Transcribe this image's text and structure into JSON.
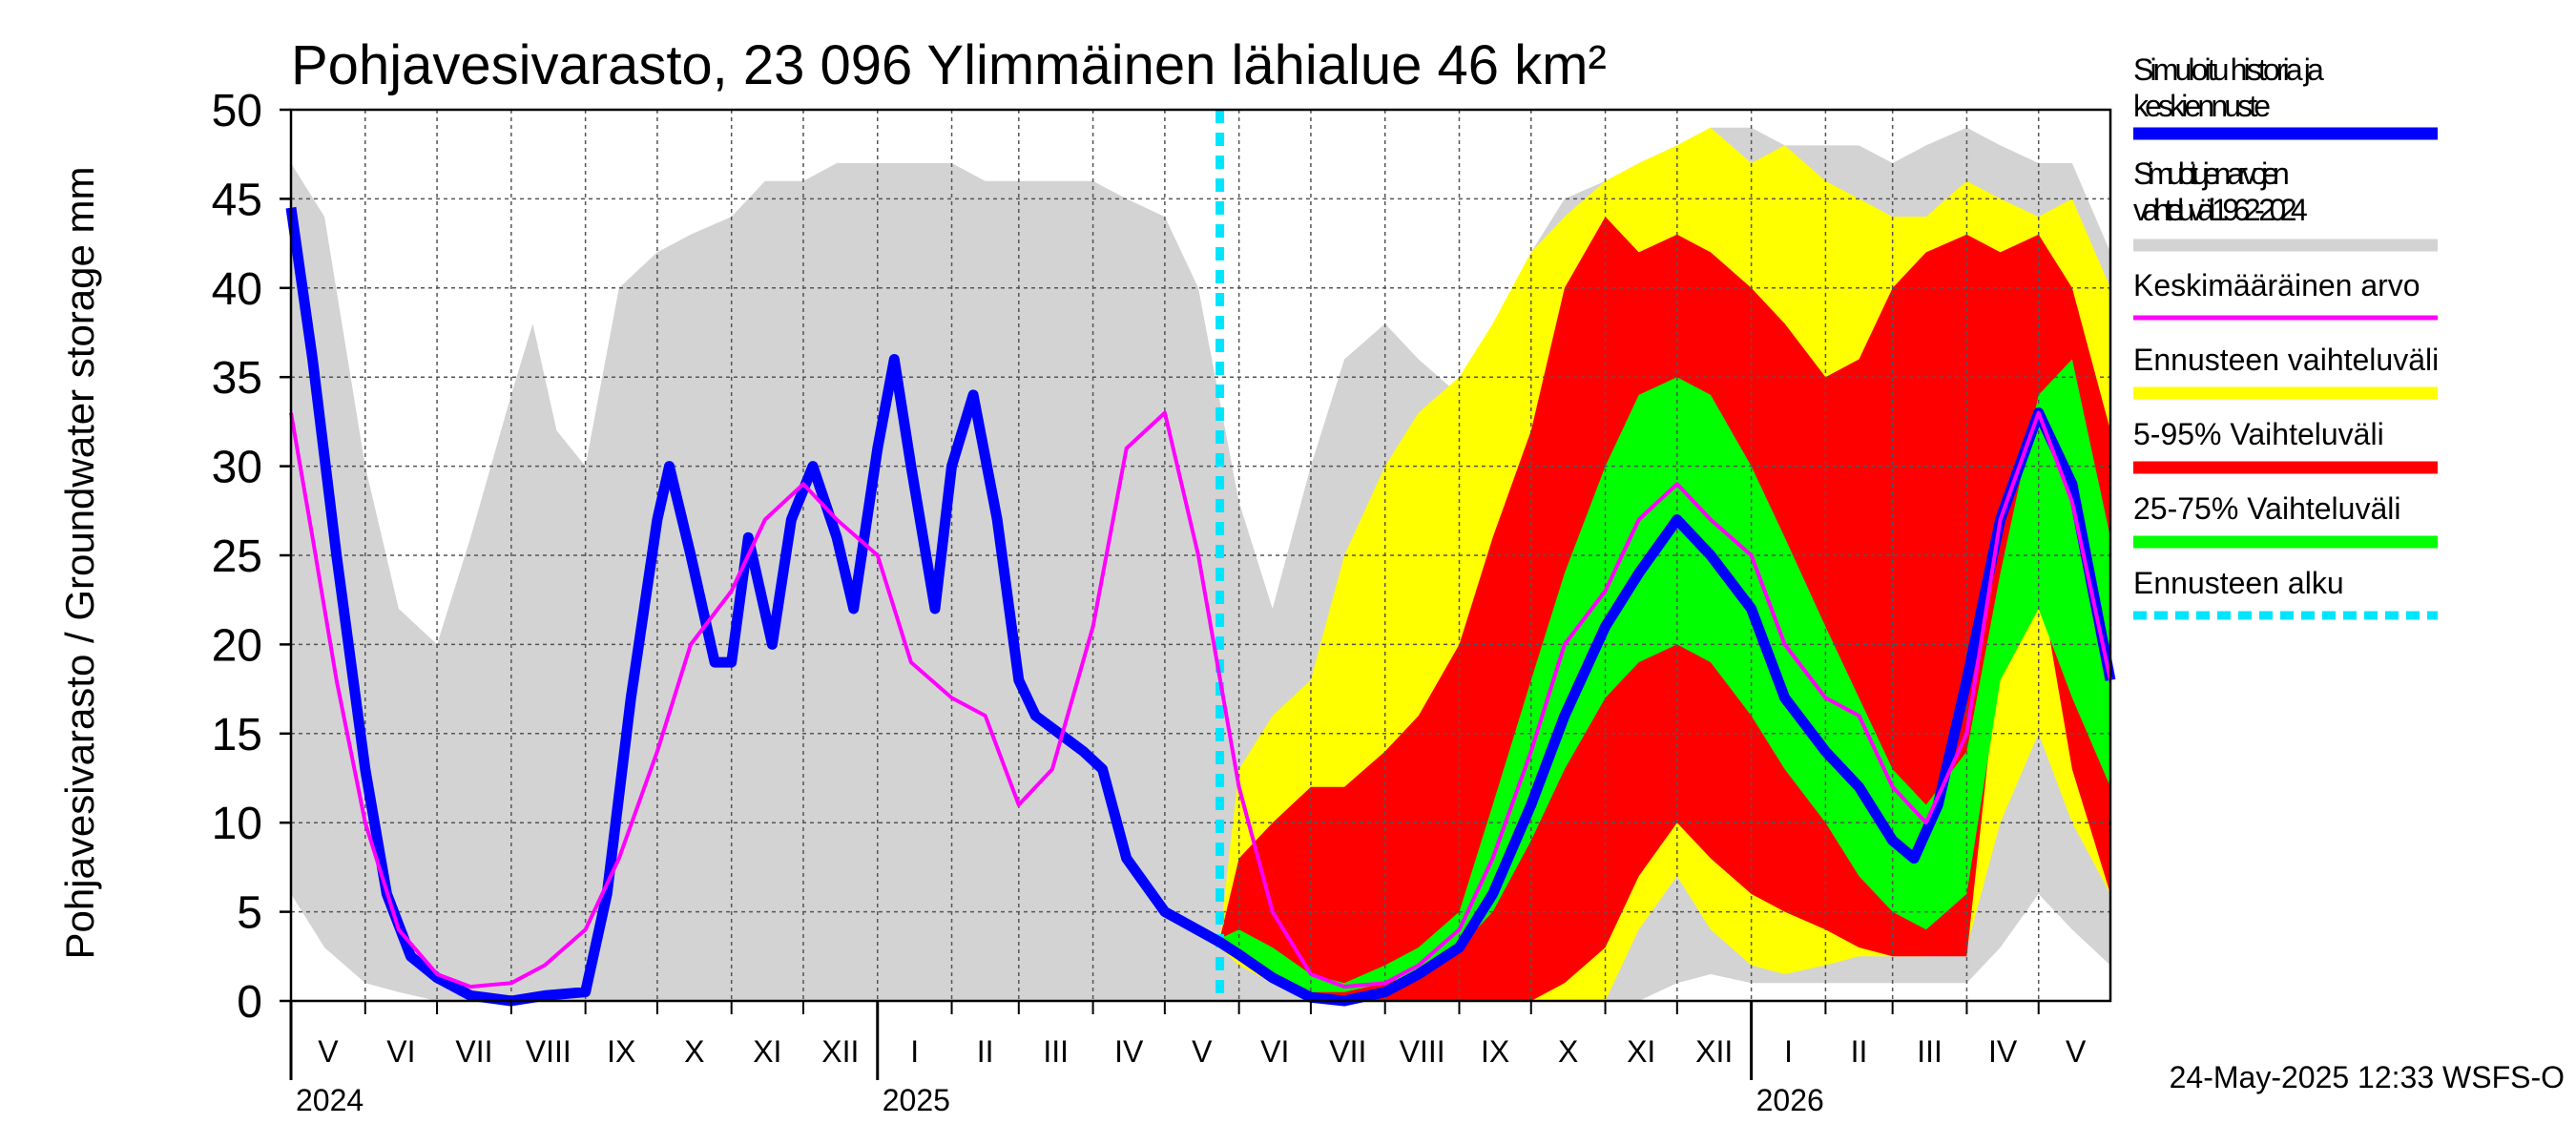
{
  "chart_data": {
    "type": "area",
    "title": "Pohjavesivarasto, 23 096 Ylimmäinen lähialue 46 km²",
    "ylabel": "Pohjavesivarasto / Groundwater storage   mm",
    "ylim": [
      0,
      50
    ],
    "yticks": [
      "0",
      "5",
      "10",
      "15",
      "20",
      "25",
      "30",
      "35",
      "40",
      "45",
      "50"
    ],
    "xlim": [
      "2024-05-01",
      "2026-05-31"
    ],
    "grid": true,
    "legend_position": "right",
    "months": [
      {
        "label": "V",
        "start": "2024-05-01",
        "end": "2024-06-01"
      },
      {
        "label": "VI",
        "start": "2024-06-01",
        "end": "2024-07-01"
      },
      {
        "label": "VII",
        "start": "2024-07-01",
        "end": "2024-08-01"
      },
      {
        "label": "VIII",
        "start": "2024-08-01",
        "end": "2024-09-01"
      },
      {
        "label": "IX",
        "start": "2024-09-01",
        "end": "2024-10-01"
      },
      {
        "label": "X",
        "start": "2024-10-01",
        "end": "2024-11-01"
      },
      {
        "label": "XI",
        "start": "2024-11-01",
        "end": "2024-12-01"
      },
      {
        "label": "XII",
        "start": "2024-12-01",
        "end": "2025-01-01"
      },
      {
        "label": "I",
        "start": "2025-01-01",
        "end": "2025-02-01"
      },
      {
        "label": "II",
        "start": "2025-02-01",
        "end": "2025-03-01"
      },
      {
        "label": "III",
        "start": "2025-03-01",
        "end": "2025-04-01"
      },
      {
        "label": "IV",
        "start": "2025-04-01",
        "end": "2025-05-01"
      },
      {
        "label": "V",
        "start": "2025-05-01",
        "end": "2025-06-01"
      },
      {
        "label": "VI",
        "start": "2025-06-01",
        "end": "2025-07-01"
      },
      {
        "label": "VII",
        "start": "2025-07-01",
        "end": "2025-08-01"
      },
      {
        "label": "VIII",
        "start": "2025-08-01",
        "end": "2025-09-01"
      },
      {
        "label": "IX",
        "start": "2025-09-01",
        "end": "2025-10-01"
      },
      {
        "label": "X",
        "start": "2025-10-01",
        "end": "2025-11-01"
      },
      {
        "label": "XI",
        "start": "2025-11-01",
        "end": "2025-12-01"
      },
      {
        "label": "XII",
        "start": "2025-12-01",
        "end": "2026-01-01"
      },
      {
        "label": "I",
        "start": "2026-01-01",
        "end": "2026-02-01"
      },
      {
        "label": "II",
        "start": "2026-02-01",
        "end": "2026-03-01"
      },
      {
        "label": "III",
        "start": "2026-03-01",
        "end": "2026-04-01"
      },
      {
        "label": "IV",
        "start": "2026-04-01",
        "end": "2026-05-01"
      },
      {
        "label": "V",
        "start": "2026-05-01",
        "end": "2026-06-01"
      }
    ],
    "years": [
      {
        "label": "2024",
        "date": "2024-05-01"
      },
      {
        "label": "2025",
        "date": "2025-01-01"
      },
      {
        "label": "2026",
        "date": "2026-01-01"
      }
    ],
    "forecast_start": "2025-05-24",
    "series": [
      {
        "name": "Simuloitujen arvojen vaihteluväli 1962-2024",
        "kind": "band",
        "color": "#d3d3d3",
        "x": [
          "2024-05-01",
          "2024-05-15",
          "2024-06-01",
          "2024-06-15",
          "2024-07-01",
          "2024-07-15",
          "2024-08-01",
          "2024-08-10",
          "2024-08-20",
          "2024-09-01",
          "2024-09-15",
          "2024-10-01",
          "2024-10-15",
          "2024-11-01",
          "2024-11-15",
          "2024-12-01",
          "2024-12-15",
          "2025-01-01",
          "2025-01-15",
          "2025-02-01",
          "2025-02-15",
          "2025-03-01",
          "2025-03-15",
          "2025-04-01",
          "2025-04-15",
          "2025-05-01",
          "2025-05-15",
          "2025-06-01",
          "2025-06-15",
          "2025-07-01",
          "2025-07-15",
          "2025-08-01",
          "2025-08-15",
          "2025-09-01",
          "2025-09-15",
          "2025-10-01",
          "2025-10-15",
          "2025-11-01",
          "2025-11-15",
          "2025-12-01",
          "2025-12-15",
          "2026-01-01",
          "2026-01-15",
          "2026-02-01",
          "2026-02-15",
          "2026-03-01",
          "2026-03-15",
          "2026-04-01",
          "2026-04-15",
          "2026-05-01",
          "2026-05-15",
          "2026-05-31"
        ],
        "low": [
          6,
          3,
          1,
          0.5,
          0,
          0,
          0,
          0,
          0,
          0,
          0,
          0,
          0,
          0,
          0,
          0,
          0,
          0,
          0,
          0,
          0,
          0,
          0,
          0,
          0,
          0,
          0,
          0,
          0,
          0,
          0,
          0,
          0,
          0,
          0,
          0,
          0,
          0,
          0,
          1,
          1.5,
          1,
          1,
          1,
          1,
          1,
          1,
          1,
          3,
          6,
          4,
          2
        ],
        "high": [
          47,
          44,
          30,
          22,
          20,
          26,
          34,
          38,
          32,
          30,
          40,
          42,
          43,
          44,
          46,
          46,
          47,
          47,
          47,
          47,
          46,
          46,
          46,
          46,
          45,
          44,
          40,
          28,
          22,
          30,
          36,
          38,
          36,
          34,
          37,
          42,
          45,
          46,
          47,
          48,
          49,
          49,
          48,
          48,
          48,
          47,
          48,
          49,
          48,
          47,
          47,
          42
        ]
      },
      {
        "name": "Ennusteen vaihteluväli",
        "kind": "band",
        "color": "#ffff00",
        "x": [
          "2025-05-24",
          "2025-06-01",
          "2025-06-15",
          "2025-07-01",
          "2025-07-15",
          "2025-08-01",
          "2025-08-15",
          "2025-09-01",
          "2025-09-15",
          "2025-10-01",
          "2025-10-15",
          "2025-11-01",
          "2025-11-15",
          "2025-12-01",
          "2025-12-15",
          "2026-01-01",
          "2026-01-15",
          "2026-02-01",
          "2026-02-15",
          "2026-03-01",
          "2026-03-15",
          "2026-04-01",
          "2026-04-15",
          "2026-05-01",
          "2026-05-15",
          "2026-05-31"
        ],
        "low": [
          3,
          2,
          1,
          0.5,
          0,
          0,
          0,
          0,
          0,
          0,
          0,
          0,
          4,
          7,
          4,
          2,
          1.5,
          2,
          2.5,
          2.5,
          2.5,
          3,
          10,
          15,
          10,
          6
        ],
        "high": [
          3.5,
          13,
          16,
          18,
          25,
          30,
          33,
          35,
          38,
          42,
          44,
          46,
          47,
          48,
          49,
          47,
          48,
          46,
          45,
          44,
          44,
          46,
          45,
          44,
          45,
          40
        ]
      },
      {
        "name": "5-95% Vaihteluväli",
        "kind": "band",
        "color": "#ff0000",
        "x": [
          "2025-05-24",
          "2025-06-01",
          "2025-06-15",
          "2025-07-01",
          "2025-07-15",
          "2025-08-01",
          "2025-08-15",
          "2025-09-01",
          "2025-09-15",
          "2025-10-01",
          "2025-10-15",
          "2025-11-01",
          "2025-11-15",
          "2025-12-01",
          "2025-12-15",
          "2026-01-01",
          "2026-01-15",
          "2026-02-01",
          "2026-02-15",
          "2026-03-01",
          "2026-03-15",
          "2026-04-01",
          "2026-04-15",
          "2026-05-01",
          "2026-05-15",
          "2026-05-31"
        ],
        "low": [
          3,
          2.5,
          1.5,
          0.5,
          0,
          0,
          0,
          0,
          0,
          0,
          1,
          3,
          7,
          10,
          8,
          6,
          5,
          4,
          3,
          2.5,
          2.5,
          2.5,
          20,
          24,
          13,
          6
        ],
        "high": [
          3.5,
          8,
          10,
          12,
          12,
          14,
          16,
          20,
          26,
          32,
          40,
          44,
          42,
          43,
          42,
          40,
          38,
          35,
          36,
          40,
          42,
          43,
          42,
          43,
          40,
          32
        ]
      },
      {
        "name": "25-75% Vaihteluväli",
        "kind": "band",
        "color": "#00ff00",
        "x": [
          "2025-05-24",
          "2025-06-01",
          "2025-06-15",
          "2025-07-01",
          "2025-07-15",
          "2025-08-01",
          "2025-08-15",
          "2025-09-01",
          "2025-09-15",
          "2025-10-01",
          "2025-10-15",
          "2025-11-01",
          "2025-11-15",
          "2025-12-01",
          "2025-12-15",
          "2026-01-01",
          "2026-01-15",
          "2026-02-01",
          "2026-02-15",
          "2026-03-01",
          "2026-03-15",
          "2026-04-01",
          "2026-04-15",
          "2026-05-01",
          "2026-05-15",
          "2026-05-31"
        ],
        "low": [
          3,
          2.5,
          1.5,
          0.5,
          0.5,
          1,
          1.5,
          3,
          5,
          9,
          13,
          17,
          19,
          20,
          19,
          16,
          13,
          10,
          7,
          5,
          4,
          6,
          18,
          22,
          17,
          12
        ],
        "high": [
          3.5,
          4,
          3,
          1.5,
          1,
          2,
          3,
          5,
          11,
          18,
          24,
          30,
          34,
          35,
          34,
          30,
          26,
          21,
          17,
          13,
          11,
          14,
          24,
          34,
          36,
          26
        ]
      },
      {
        "name": "Simuloitu historia ja keskiennuste",
        "kind": "line",
        "color": "#0000ff",
        "x": [
          "2024-05-01",
          "2024-05-10",
          "2024-05-20",
          "2024-06-01",
          "2024-06-10",
          "2024-06-20",
          "2024-07-01",
          "2024-07-15",
          "2024-08-01",
          "2024-08-15",
          "2024-09-01",
          "2024-09-10",
          "2024-09-20",
          "2024-10-01",
          "2024-10-06",
          "2024-10-15",
          "2024-10-25",
          "2024-11-01",
          "2024-11-08",
          "2024-11-18",
          "2024-11-26",
          "2024-12-05",
          "2024-12-15",
          "2024-12-22",
          "2025-01-01",
          "2025-01-08",
          "2025-01-15",
          "2025-01-25",
          "2025-02-01",
          "2025-02-10",
          "2025-02-20",
          "2025-03-01",
          "2025-03-08",
          "2025-03-18",
          "2025-03-28",
          "2025-04-05",
          "2025-04-15",
          "2025-05-01",
          "2025-05-24",
          "2025-06-01",
          "2025-06-15",
          "2025-07-01",
          "2025-07-15",
          "2025-08-01",
          "2025-08-15",
          "2025-09-01",
          "2025-09-15",
          "2025-10-01",
          "2025-10-15",
          "2025-11-01",
          "2025-11-15",
          "2025-12-01",
          "2025-12-15",
          "2026-01-01",
          "2026-01-15",
          "2026-02-01",
          "2026-02-15",
          "2026-03-01",
          "2026-03-10",
          "2026-03-20",
          "2026-04-01",
          "2026-04-15",
          "2026-05-01",
          "2026-05-15",
          "2026-05-31"
        ],
        "y": [
          44.5,
          36,
          25,
          13,
          6,
          2.5,
          1.3,
          0.3,
          0,
          0.3,
          0.5,
          6,
          17,
          27,
          30,
          25,
          19,
          19,
          26,
          20,
          27,
          30,
          26,
          22,
          31,
          36,
          30,
          22,
          30,
          34,
          27,
          18,
          16,
          15,
          14,
          13,
          8,
          5,
          3.3,
          2.6,
          1.3,
          0.2,
          0,
          0.5,
          1.5,
          3,
          6,
          11,
          16,
          21,
          24,
          27,
          25,
          22,
          17,
          14,
          12,
          9,
          8,
          11,
          18,
          27,
          33,
          29,
          18
        ]
      },
      {
        "name": "Keskimääräinen arvo",
        "kind": "line",
        "color": "#ff00ff",
        "x": [
          "2024-05-01",
          "2024-05-10",
          "2024-05-20",
          "2024-06-01",
          "2024-06-15",
          "2024-07-01",
          "2024-07-15",
          "2024-08-01",
          "2024-08-15",
          "2024-09-01",
          "2024-09-15",
          "2024-10-01",
          "2024-10-15",
          "2024-11-01",
          "2024-11-15",
          "2024-12-01",
          "2024-12-15",
          "2025-01-01",
          "2025-01-15",
          "2025-02-01",
          "2025-02-15",
          "2025-03-01",
          "2025-03-15",
          "2025-04-01",
          "2025-04-15",
          "2025-05-01",
          "2025-05-15",
          "2025-06-01",
          "2025-06-15",
          "2025-07-01",
          "2025-07-15",
          "2025-08-01",
          "2025-08-15",
          "2025-09-01",
          "2025-09-15",
          "2025-10-01",
          "2025-10-15",
          "2025-11-01",
          "2025-11-15",
          "2025-12-01",
          "2025-12-15",
          "2026-01-01",
          "2026-01-15",
          "2026-02-01",
          "2026-02-15",
          "2026-03-01",
          "2026-03-15",
          "2026-04-01",
          "2026-04-15",
          "2026-05-01",
          "2026-05-15",
          "2026-05-31"
        ],
        "y": [
          33,
          26,
          18,
          10,
          4,
          1.5,
          0.8,
          1,
          2,
          4,
          8,
          14,
          20,
          23,
          27,
          29,
          27,
          25,
          19,
          17,
          16,
          11,
          13,
          21,
          31,
          33,
          25,
          12,
          5,
          1.5,
          0.8,
          1,
          2,
          4,
          8,
          14,
          20,
          23,
          27,
          29,
          27,
          25,
          20,
          17,
          16,
          12,
          10,
          15,
          27,
          33,
          28,
          18
        ]
      }
    ],
    "legend": [
      {
        "label": "Simuloitu historia ja keskiennuste",
        "color": "#0000ff"
      },
      {
        "label": "Simuloitujen arvojen vaihteluväli 1962-2024",
        "color": "#d3d3d3"
      },
      {
        "label": "Keskimääräinen arvo",
        "color": "#ff00ff"
      },
      {
        "label": "Ennusteen vaihteluväli",
        "color": "#ffff00"
      },
      {
        "label": "5-95% Vaihteluväli",
        "color": "#ff0000"
      },
      {
        "label": "25-75% Vaihteluväli",
        "color": "#00ff00"
      },
      {
        "label": "Ennusteen alku",
        "color": "#00e5ff"
      }
    ],
    "timestamp": "24-May-2025 12:33 WSFS-O"
  }
}
